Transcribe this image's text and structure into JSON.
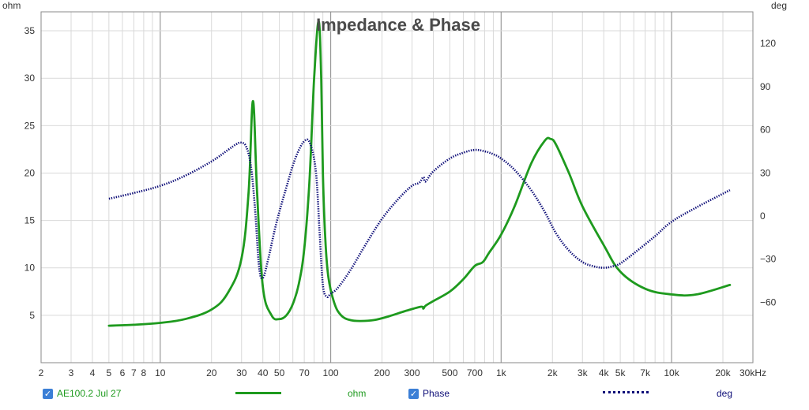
{
  "chart_data": {
    "type": "line",
    "title": "Impedance & Phase",
    "x_scale": "log",
    "xlim": [
      2,
      30000
    ],
    "x_ticks": [
      {
        "v": 2,
        "label": "2"
      },
      {
        "v": 3,
        "label": "3"
      },
      {
        "v": 4,
        "label": "4"
      },
      {
        "v": 5,
        "label": "5"
      },
      {
        "v": 6,
        "label": "6"
      },
      {
        "v": 7,
        "label": "7"
      },
      {
        "v": 8,
        "label": "8"
      },
      {
        "v": 10,
        "label": "10"
      },
      {
        "v": 20,
        "label": "20"
      },
      {
        "v": 30,
        "label": "30"
      },
      {
        "v": 40,
        "label": "40"
      },
      {
        "v": 50,
        "label": "50"
      },
      {
        "v": 70,
        "label": "70"
      },
      {
        "v": 100,
        "label": "100"
      },
      {
        "v": 200,
        "label": "200"
      },
      {
        "v": 300,
        "label": "300"
      },
      {
        "v": 500,
        "label": "500"
      },
      {
        "v": 700,
        "label": "700"
      },
      {
        "v": 1000,
        "label": "1k"
      },
      {
        "v": 2000,
        "label": "2k"
      },
      {
        "v": 3000,
        "label": "3k"
      },
      {
        "v": 4000,
        "label": "4k"
      },
      {
        "v": 5000,
        "label": "5k"
      },
      {
        "v": 7000,
        "label": "7k"
      },
      {
        "v": 10000,
        "label": "10k"
      },
      {
        "v": 20000,
        "label": "20k"
      },
      {
        "v": 30000,
        "label": "30kHz"
      }
    ],
    "y_left": {
      "label": "ohm",
      "ylim": [
        0,
        37
      ],
      "ticks": [
        5,
        10,
        15,
        20,
        25,
        30,
        35
      ]
    },
    "y_right": {
      "label": "deg",
      "ylim": [
        -102,
        142
      ],
      "ticks": [
        120,
        90,
        60,
        30,
        0,
        -30,
        -60
      ]
    },
    "grid": true,
    "series": [
      {
        "name": "AE100.2 Jul 27",
        "unit": "ohm",
        "axis": "left",
        "color": "#1e9a1e",
        "style": "solid",
        "x": [
          5,
          7,
          10,
          14,
          20,
          25,
          30,
          33,
          35,
          37,
          40,
          45,
          50,
          55,
          60,
          65,
          70,
          75,
          80,
          85,
          88,
          90,
          93,
          97,
          105,
          115,
          130,
          150,
          180,
          220,
          280,
          340,
          350,
          360,
          400,
          500,
          600,
          700,
          780,
          850,
          1000,
          1200,
          1500,
          1800,
          1950,
          2100,
          2500,
          3000,
          4000,
          5000,
          7000,
          10000,
          14000,
          22000
        ],
        "values": [
          3.9,
          4.0,
          4.2,
          4.6,
          5.6,
          7.4,
          11.0,
          18.0,
          27.6,
          18.0,
          8.0,
          5.0,
          4.6,
          5.0,
          6.2,
          8.3,
          12.0,
          19.0,
          30.0,
          36.0,
          30.0,
          20.0,
          13.0,
          9.0,
          6.3,
          5.0,
          4.5,
          4.4,
          4.5,
          4.9,
          5.5,
          5.9,
          5.7,
          6.0,
          6.5,
          7.5,
          8.8,
          10.2,
          10.6,
          11.6,
          13.5,
          16.5,
          21.0,
          23.4,
          23.6,
          23.0,
          20.0,
          16.5,
          12.4,
          9.6,
          7.8,
          7.2,
          7.2,
          8.2
        ]
      },
      {
        "name": "Phase",
        "unit": "deg",
        "axis": "right",
        "color": "#0e0e78",
        "style": "dotted",
        "x": [
          5,
          7,
          10,
          14,
          20,
          25,
          28,
          30,
          32,
          34,
          36,
          38,
          40,
          43,
          48,
          55,
          62,
          70,
          76,
          82,
          86,
          90,
          95,
          100,
          110,
          130,
          160,
          200,
          250,
          300,
          330,
          350,
          360,
          400,
          500,
          600,
          700,
          800,
          900,
          1000,
          1200,
          1500,
          1800,
          2100,
          2500,
          3000,
          3500,
          4000,
          4500,
          5000,
          6000,
          8000,
          10000,
          14000,
          22000
        ],
        "values": [
          12,
          16,
          21,
          28,
          38,
          46,
          50,
          51,
          48,
          35,
          5,
          -35,
          -43,
          -30,
          -5,
          20,
          40,
          52,
          50,
          30,
          -10,
          -48,
          -56,
          -54,
          -50,
          -38,
          -20,
          -2,
          12,
          21,
          23,
          27,
          24,
          31,
          40,
          44,
          46,
          45,
          43,
          40,
          32,
          18,
          3,
          -12,
          -24,
          -32,
          -35,
          -36,
          -35,
          -33,
          -26,
          -14,
          -4,
          6,
          18
        ]
      }
    ]
  },
  "legend": {
    "item1_label": "AE100.2 Jul 27",
    "item1_unit": "ohm",
    "item2_label": "Phase",
    "item2_unit": "deg",
    "check_glyph": "✓"
  },
  "colors": {
    "impedance": "#1e9a1e",
    "phase": "#0e0e78",
    "grid_minor": "#d9d9d9",
    "grid_major": "#9a9a9a",
    "title": "#4a4a4a"
  }
}
